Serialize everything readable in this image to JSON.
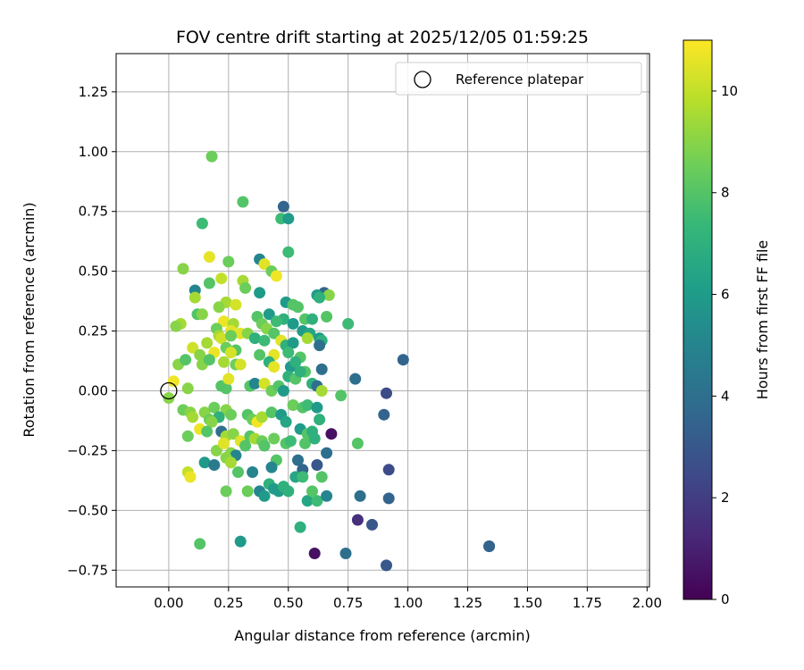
{
  "chart_data": {
    "type": "scatter",
    "title": "FOV centre drift starting at 2025/12/05 01:59:25",
    "xlabel": "Angular distance from reference (arcmin)",
    "ylabel": "Rotation from reference (arcmin)",
    "xlim": [
      -0.22,
      2.01
    ],
    "ylim": [
      -0.82,
      1.41
    ],
    "xticks": [
      0.0,
      0.25,
      0.5,
      0.75,
      1.0,
      1.25,
      1.5,
      1.75,
      2.0
    ],
    "xtick_labels": [
      "0.00",
      "0.25",
      "0.50",
      "0.75",
      "1.00",
      "1.25",
      "1.50",
      "1.75",
      "2.00"
    ],
    "yticks": [
      -0.75,
      -0.5,
      -0.25,
      0.0,
      0.25,
      0.5,
      0.75,
      1.0,
      1.25
    ],
    "ytick_labels": [
      "−0.75",
      "−0.50",
      "−0.25",
      "0.00",
      "0.25",
      "0.50",
      "0.75",
      "1.00",
      "1.25"
    ],
    "grid": true,
    "legend": {
      "position": "top-right",
      "entries": [
        "Reference platepar"
      ]
    },
    "reference_point": {
      "x": 0.0,
      "y": 0.0,
      "label": "Reference platepar"
    },
    "colorbar": {
      "label": "Hours from first FF file",
      "range": [
        0,
        11
      ],
      "ticks": [
        0,
        2,
        4,
        6,
        8,
        10
      ],
      "tick_labels": [
        "0",
        "2",
        "4",
        "6",
        "8",
        "10"
      ],
      "colormap": "viridis",
      "colormap_stops": [
        "#440154",
        "#482878",
        "#3e4a89",
        "#31688e",
        "#26828e",
        "#1f9e89",
        "#35b779",
        "#6ece58",
        "#b5de2b",
        "#fde725"
      ]
    },
    "points": [
      [
        0.18,
        0.98,
        8.5
      ],
      [
        0.31,
        0.79,
        8.0
      ],
      [
        0.48,
        0.77,
        3.5
      ],
      [
        0.47,
        0.72,
        7.5
      ],
      [
        0.5,
        0.72,
        6.0
      ],
      [
        0.14,
        0.7,
        7.5
      ],
      [
        0.5,
        0.58,
        7.5
      ],
      [
        0.17,
        0.56,
        10.6
      ],
      [
        0.25,
        0.54,
        8.5
      ],
      [
        0.38,
        0.55,
        5.0
      ],
      [
        0.4,
        0.53,
        10.5
      ],
      [
        0.06,
        0.51,
        9.0
      ],
      [
        0.43,
        0.5,
        8.5
      ],
      [
        0.45,
        0.48,
        10.8
      ],
      [
        0.22,
        0.47,
        10.0
      ],
      [
        0.31,
        0.46,
        9.5
      ],
      [
        0.17,
        0.45,
        8.0
      ],
      [
        0.32,
        0.43,
        8.5
      ],
      [
        0.11,
        0.42,
        5.0
      ],
      [
        0.38,
        0.41,
        6.0
      ],
      [
        0.65,
        0.41,
        3.5
      ],
      [
        0.62,
        0.4,
        6.0
      ],
      [
        0.67,
        0.4,
        9.0
      ],
      [
        0.63,
        0.39,
        7.0
      ],
      [
        0.11,
        0.39,
        9.5
      ],
      [
        0.24,
        0.37,
        9.5
      ],
      [
        0.28,
        0.36,
        10.3
      ],
      [
        0.49,
        0.37,
        6.0
      ],
      [
        0.52,
        0.36,
        8.0
      ],
      [
        0.54,
        0.35,
        8.0
      ],
      [
        0.21,
        0.35,
        9.0
      ],
      [
        0.12,
        0.32,
        8.0
      ],
      [
        0.14,
        0.32,
        9.0
      ],
      [
        0.37,
        0.31,
        8.0
      ],
      [
        0.42,
        0.32,
        6.0
      ],
      [
        0.48,
        0.3,
        7.0
      ],
      [
        0.57,
        0.3,
        8.0
      ],
      [
        0.6,
        0.3,
        7.0
      ],
      [
        0.66,
        0.31,
        8.0
      ],
      [
        0.23,
        0.29,
        10.7
      ],
      [
        0.27,
        0.28,
        9.5
      ],
      [
        0.05,
        0.28,
        9.5
      ],
      [
        0.03,
        0.27,
        9.0
      ],
      [
        0.39,
        0.28,
        8.5
      ],
      [
        0.45,
        0.29,
        7.5
      ],
      [
        0.52,
        0.28,
        6.0
      ],
      [
        0.75,
        0.28,
        7.5
      ],
      [
        0.2,
        0.26,
        8.5
      ],
      [
        0.3,
        0.24,
        10.5
      ],
      [
        0.33,
        0.24,
        9.0
      ],
      [
        0.26,
        0.25,
        10.6
      ],
      [
        0.41,
        0.26,
        9.0
      ],
      [
        0.44,
        0.24,
        8.0
      ],
      [
        0.56,
        0.25,
        6.0
      ],
      [
        0.59,
        0.24,
        6.5
      ],
      [
        0.63,
        0.22,
        6.0
      ],
      [
        0.64,
        0.21,
        7.0
      ],
      [
        0.58,
        0.22,
        9.5
      ],
      [
        0.21,
        0.23,
        9.5
      ],
      [
        0.22,
        0.22,
        10.2
      ],
      [
        0.26,
        0.23,
        8.5
      ],
      [
        0.36,
        0.22,
        7.0
      ],
      [
        0.4,
        0.21,
        7.5
      ],
      [
        0.47,
        0.21,
        10.5
      ],
      [
        0.49,
        0.19,
        7.0
      ],
      [
        0.52,
        0.2,
        6.0
      ],
      [
        0.1,
        0.18,
        10.2
      ],
      [
        0.16,
        0.2,
        9.5
      ],
      [
        0.24,
        0.18,
        8.5
      ],
      [
        0.28,
        0.17,
        8.0
      ],
      [
        0.19,
        0.16,
        10.7
      ],
      [
        0.13,
        0.15,
        9.0
      ],
      [
        0.26,
        0.16,
        10.3
      ],
      [
        0.38,
        0.15,
        8.0
      ],
      [
        0.44,
        0.15,
        10.6
      ],
      [
        0.5,
        0.16,
        7.5
      ],
      [
        0.55,
        0.14,
        8.0
      ],
      [
        0.63,
        0.19,
        4.0
      ],
      [
        0.04,
        0.11,
        9.0
      ],
      [
        0.07,
        0.13,
        8.0
      ],
      [
        0.14,
        0.11,
        9.0
      ],
      [
        0.17,
        0.13,
        8.0
      ],
      [
        0.23,
        0.12,
        9.5
      ],
      [
        0.28,
        0.11,
        8.5
      ],
      [
        0.3,
        0.11,
        10.3
      ],
      [
        0.42,
        0.12,
        7.0
      ],
      [
        0.44,
        0.1,
        10.6
      ],
      [
        0.51,
        0.1,
        6.0
      ],
      [
        0.53,
        0.12,
        7.0
      ],
      [
        0.57,
        0.08,
        8.0
      ],
      [
        0.64,
        0.09,
        4.0
      ],
      [
        0.78,
        0.05,
        4.0
      ],
      [
        0.98,
        0.13,
        3.5
      ],
      [
        0.02,
        0.04,
        10.8
      ],
      [
        0.08,
        0.01,
        9.0
      ],
      [
        0.22,
        0.02,
        8.0
      ],
      [
        0.24,
        0.01,
        8.0
      ],
      [
        0.25,
        0.05,
        10.5
      ],
      [
        0.34,
        0.02,
        8.0
      ],
      [
        0.36,
        0.03,
        5.0
      ],
      [
        0.4,
        0.03,
        10.3
      ],
      [
        0.43,
        0.0,
        8.5
      ],
      [
        0.46,
        0.02,
        8.0
      ],
      [
        0.48,
        0.0,
        6.0
      ],
      [
        0.5,
        0.06,
        7.0
      ],
      [
        0.53,
        0.05,
        8.0
      ],
      [
        0.55,
        0.08,
        7.0
      ],
      [
        0.6,
        0.03,
        7.0
      ],
      [
        0.62,
        0.02,
        4.0
      ],
      [
        0.64,
        0.0,
        9.5
      ],
      [
        0.72,
        -0.02,
        8.0
      ],
      [
        0.91,
        -0.01,
        2.5
      ],
      [
        0.0,
        -0.03,
        9.0
      ],
      [
        0.06,
        -0.08,
        8.5
      ],
      [
        0.09,
        -0.09,
        9.0
      ],
      [
        0.1,
        -0.11,
        9.5
      ],
      [
        0.15,
        -0.09,
        9.0
      ],
      [
        0.19,
        -0.07,
        8.5
      ],
      [
        0.24,
        -0.08,
        9.0
      ],
      [
        0.26,
        -0.1,
        8.5
      ],
      [
        0.21,
        -0.11,
        7.0
      ],
      [
        0.17,
        -0.12,
        8.5
      ],
      [
        0.18,
        -0.13,
        9.0
      ],
      [
        0.33,
        -0.1,
        8.0
      ],
      [
        0.35,
        -0.12,
        8.5
      ],
      [
        0.37,
        -0.13,
        10.8
      ],
      [
        0.39,
        -0.11,
        9.5
      ],
      [
        0.43,
        -0.09,
        8.0
      ],
      [
        0.47,
        -0.1,
        6.0
      ],
      [
        0.49,
        -0.13,
        6.5
      ],
      [
        0.52,
        -0.06,
        8.5
      ],
      [
        0.56,
        -0.07,
        8.0
      ],
      [
        0.58,
        -0.06,
        7.5
      ],
      [
        0.62,
        -0.07,
        6.0
      ],
      [
        0.63,
        -0.12,
        7.0
      ],
      [
        0.55,
        -0.16,
        6.0
      ],
      [
        0.58,
        -0.18,
        8.0
      ],
      [
        0.6,
        -0.17,
        7.0
      ],
      [
        0.68,
        -0.18,
        0.5
      ],
      [
        0.9,
        -0.1,
        3.5
      ],
      [
        0.13,
        -0.16,
        10.7
      ],
      [
        0.16,
        -0.17,
        8.0
      ],
      [
        0.22,
        -0.17,
        4.0
      ],
      [
        0.24,
        -0.19,
        9.5
      ],
      [
        0.27,
        -0.18,
        9.0
      ],
      [
        0.3,
        -0.21,
        10.5
      ],
      [
        0.34,
        -0.19,
        8.0
      ],
      [
        0.36,
        -0.2,
        9.5
      ],
      [
        0.39,
        -0.21,
        8.5
      ],
      [
        0.44,
        -0.2,
        8.5
      ],
      [
        0.49,
        -0.22,
        8.0
      ],
      [
        0.51,
        -0.21,
        7.5
      ],
      [
        0.57,
        -0.22,
        8.0
      ],
      [
        0.61,
        -0.2,
        7.0
      ],
      [
        0.79,
        -0.22,
        8.0
      ],
      [
        0.08,
        -0.19,
        8.5
      ],
      [
        0.2,
        -0.25,
        9.0
      ],
      [
        0.23,
        -0.22,
        10.5
      ],
      [
        0.26,
        -0.26,
        9.0
      ],
      [
        0.28,
        -0.27,
        5.0
      ],
      [
        0.32,
        -0.23,
        8.0
      ],
      [
        0.4,
        -0.23,
        8.0
      ],
      [
        0.45,
        -0.29,
        8.0
      ],
      [
        0.43,
        -0.32,
        5.0
      ],
      [
        0.54,
        -0.29,
        4.0
      ],
      [
        0.56,
        -0.33,
        3.5
      ],
      [
        0.62,
        -0.31,
        3.0
      ],
      [
        0.66,
        -0.26,
        4.0
      ],
      [
        0.92,
        -0.33,
        2.5
      ],
      [
        0.15,
        -0.3,
        6.0
      ],
      [
        0.19,
        -0.31,
        4.5
      ],
      [
        0.24,
        -0.28,
        9.0
      ],
      [
        0.26,
        -0.3,
        9.5
      ],
      [
        0.08,
        -0.34,
        10.0
      ],
      [
        0.09,
        -0.36,
        10.7
      ],
      [
        0.29,
        -0.34,
        8.0
      ],
      [
        0.35,
        -0.34,
        5.0
      ],
      [
        0.38,
        -0.42,
        5.0
      ],
      [
        0.42,
        -0.39,
        7.0
      ],
      [
        0.44,
        -0.41,
        6.0
      ],
      [
        0.46,
        -0.42,
        6.0
      ],
      [
        0.48,
        -0.4,
        7.0
      ],
      [
        0.5,
        -0.42,
        7.0
      ],
      [
        0.53,
        -0.36,
        6.5
      ],
      [
        0.56,
        -0.36,
        7.5
      ],
      [
        0.58,
        -0.46,
        6.5
      ],
      [
        0.62,
        -0.46,
        7.5
      ],
      [
        0.64,
        -0.36,
        8.0
      ],
      [
        0.66,
        -0.44,
        5.0
      ],
      [
        0.6,
        -0.42,
        8.0
      ],
      [
        0.24,
        -0.42,
        8.5
      ],
      [
        0.33,
        -0.42,
        8.5
      ],
      [
        0.4,
        -0.44,
        6.0
      ],
      [
        0.8,
        -0.44,
        4.0
      ],
      [
        0.92,
        -0.45,
        3.5
      ],
      [
        0.79,
        -0.54,
        1.5
      ],
      [
        0.85,
        -0.56,
        3.0
      ],
      [
        0.55,
        -0.57,
        7.0
      ],
      [
        0.61,
        -0.68,
        0.5
      ],
      [
        0.74,
        -0.68,
        4.0
      ],
      [
        0.91,
        -0.73,
        3.0
      ],
      [
        0.13,
        -0.64,
        8.0
      ],
      [
        0.3,
        -0.63,
        6.0
      ],
      [
        1.34,
        -0.65,
        3.5
      ],
      [
        1.34,
        -0.65,
        3.5
      ]
    ]
  }
}
